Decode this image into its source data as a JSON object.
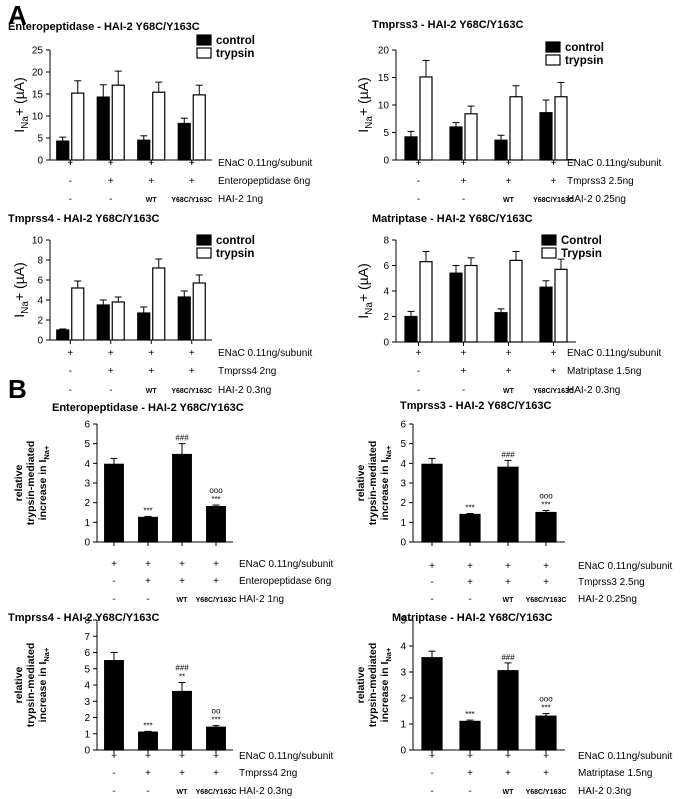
{
  "section_labels": {
    "a": "A",
    "b": "B"
  },
  "chart_data": [
    {
      "id": "A1",
      "type": "bar",
      "title": "Enteropeptidase - HAI-2 Y68C/Y163C",
      "ylabel_main": "I",
      "ylabel_sub": "Na",
      "ylabel_rest": "+ (µA)",
      "ylim": [
        0,
        25
      ],
      "yticks": [
        0,
        5,
        10,
        15,
        20,
        25
      ],
      "legend": [
        "control",
        "trypsin"
      ],
      "legend_position": "top-right",
      "series": [
        {
          "name": "control",
          "values": [
            4.3,
            14.3,
            4.5,
            8.3
          ],
          "errors": [
            0.9,
            2.8,
            1.0,
            1.2
          ]
        },
        {
          "name": "trypsin",
          "values": [
            15.2,
            17.0,
            15.4,
            14.8
          ],
          "errors": [
            2.8,
            3.2,
            2.3,
            2.2
          ]
        }
      ],
      "conditions": [
        {
          "label": "ENaC 0.11ng/subunit",
          "values": [
            "+",
            "+",
            "+",
            "+"
          ]
        },
        {
          "label": "Enteropeptidase 6ng",
          "values": [
            "-",
            "+",
            "+",
            "+"
          ]
        },
        {
          "label": "HAI-2 1ng",
          "values": [
            "-",
            "-",
            "WT",
            "Y68C/Y163C"
          ]
        }
      ]
    },
    {
      "id": "A2",
      "type": "bar",
      "title": "Tmprss3 - HAI-2 Y68C/Y163C",
      "ylabel_main": "I",
      "ylabel_sub": "Na",
      "ylabel_rest": "+ (µA)",
      "ylim": [
        0,
        20
      ],
      "yticks": [
        0,
        5,
        10,
        15,
        20
      ],
      "legend": [
        "control",
        "trypsin"
      ],
      "legend_position": "top-right",
      "series": [
        {
          "name": "control",
          "values": [
            4.2,
            6.0,
            3.6,
            8.6
          ],
          "errors": [
            1.0,
            0.8,
            0.9,
            2.3
          ]
        },
        {
          "name": "trypsin",
          "values": [
            15.1,
            8.4,
            11.5,
            11.5
          ],
          "errors": [
            3.0,
            1.4,
            2.0,
            2.6
          ]
        }
      ],
      "conditions": [
        {
          "label": "ENaC 0.11ng/subunit",
          "values": [
            "+",
            "+",
            "+",
            "+"
          ]
        },
        {
          "label": "Tmprss3 2.5ng",
          "values": [
            "-",
            "+",
            "+",
            "+"
          ]
        },
        {
          "label": "HAI-2 0.25ng",
          "values": [
            "-",
            "-",
            "WT",
            "Y68C/Y163C"
          ]
        }
      ]
    },
    {
      "id": "A3",
      "type": "bar",
      "title": "Tmprss4 - HAI-2 Y68C/Y163C",
      "ylabel_main": "I",
      "ylabel_sub": "Na",
      "ylabel_rest": "+ (µA)",
      "ylim": [
        0,
        10
      ],
      "yticks": [
        0,
        2,
        4,
        6,
        8,
        10
      ],
      "legend": [
        "control",
        "trypsin"
      ],
      "legend_position": "top-right",
      "series": [
        {
          "name": "control",
          "values": [
            1.0,
            3.5,
            2.7,
            4.3
          ],
          "errors": [
            0.1,
            0.5,
            0.6,
            0.6
          ]
        },
        {
          "name": "trypsin",
          "values": [
            5.2,
            3.8,
            7.2,
            5.7
          ],
          "errors": [
            0.7,
            0.5,
            0.9,
            0.8
          ]
        }
      ],
      "conditions": [
        {
          "label": "ENaC 0.11ng/subunit",
          "values": [
            "+",
            "+",
            "+",
            "+"
          ]
        },
        {
          "label": "Tmprss4 2ng",
          "values": [
            "-",
            "+",
            "+",
            "+"
          ]
        },
        {
          "label": "HAI-2 0.3ng",
          "values": [
            "-",
            "-",
            "WT",
            "Y68C/Y163C"
          ]
        }
      ]
    },
    {
      "id": "A4",
      "type": "bar",
      "title": "Matriptase - HAI-2 Y68C/Y163C",
      "ylabel_main": "I",
      "ylabel_sub": "Na",
      "ylabel_rest": "+ (µA)",
      "ylim": [
        0,
        8
      ],
      "yticks": [
        0,
        2,
        4,
        6,
        8
      ],
      "legend": [
        "Control",
        "Trypsin"
      ],
      "legend_position": "top-right",
      "series": [
        {
          "name": "Control",
          "values": [
            2.0,
            5.4,
            2.3,
            4.3
          ],
          "errors": [
            0.4,
            0.6,
            0.3,
            0.5
          ]
        },
        {
          "name": "Trypsin",
          "values": [
            6.3,
            6.0,
            6.4,
            5.7
          ],
          "errors": [
            0.8,
            0.6,
            0.7,
            0.8
          ]
        }
      ],
      "conditions": [
        {
          "label": "ENaC 0.11ng/subunit",
          "values": [
            "+",
            "+",
            "+",
            "+"
          ]
        },
        {
          "label": "Matriptase 1.5ng",
          "values": [
            "-",
            "+",
            "+",
            "+"
          ]
        },
        {
          "label": "HAI-2 0.3ng",
          "values": [
            "-",
            "-",
            "WT",
            "Y68C/Y163C"
          ]
        }
      ]
    },
    {
      "id": "B1",
      "type": "bar",
      "title": "Enteropeptidase - HAI-2  Y68C/Y163C",
      "ylabel_lines": [
        "relative",
        "trypsin-mediated"
      ],
      "ylabel_last_main": "increase in I",
      "ylabel_last_sub": "Na+",
      "ylim": [
        0,
        6
      ],
      "yticks": [
        0,
        1,
        2,
        3,
        4,
        5,
        6
      ],
      "series": [
        {
          "values": [
            3.95,
            1.25,
            4.45,
            1.8
          ],
          "errors": [
            0.3,
            0.05,
            0.55,
            0.08
          ]
        }
      ],
      "annotations": [
        [],
        [
          "***"
        ],
        [
          "###"
        ],
        [
          "***",
          "ooo"
        ]
      ],
      "conditions": [
        {
          "label": "ENaC 0.11ng/subunit",
          "values": [
            "+",
            "+",
            "+",
            "+"
          ]
        },
        {
          "label": "Enteropeptidase 6ng",
          "values": [
            "-",
            "+",
            "+",
            "+"
          ]
        },
        {
          "label": "HAI-2 1ng",
          "values": [
            "-",
            "-",
            "WT",
            "Y68C/Y163C"
          ]
        }
      ]
    },
    {
      "id": "B2",
      "type": "bar",
      "title": "Tmprss3 - HAI-2 Y68C/Y163C",
      "ylabel_lines": [
        "relative",
        "trypsin-mediated"
      ],
      "ylabel_last_main": "increase in I",
      "ylabel_last_sub": "Na+",
      "ylim": [
        0,
        6
      ],
      "yticks": [
        0,
        1,
        2,
        3,
        4,
        5,
        6
      ],
      "series": [
        {
          "values": [
            3.95,
            1.4,
            3.8,
            1.5
          ],
          "errors": [
            0.3,
            0.05,
            0.35,
            0.1
          ]
        }
      ],
      "annotations": [
        [],
        [
          "***"
        ],
        [
          "###"
        ],
        [
          "***",
          "ooo"
        ]
      ],
      "conditions": [
        {
          "label": "ENaC 0.11ng/subunit",
          "values": [
            "+",
            "+",
            "+",
            "+"
          ]
        },
        {
          "label": "Tmprss3 2.5ng",
          "values": [
            "-",
            "+",
            "+",
            "+"
          ]
        },
        {
          "label": "HAI-2 0.25ng",
          "values": [
            "-",
            "-",
            "WT",
            "Y68C/Y163C"
          ]
        }
      ]
    },
    {
      "id": "B3",
      "type": "bar",
      "title": "Tmprss4 - HAI-2 Y68C/Y163C",
      "ylabel_lines": [
        "relative",
        "trypsin-mediated"
      ],
      "ylabel_last_main": "increase in I",
      "ylabel_last_sub": "Na+",
      "ylim": [
        0,
        8
      ],
      "yticks": [
        0,
        1,
        2,
        3,
        4,
        5,
        6,
        7,
        8
      ],
      "series": [
        {
          "values": [
            5.5,
            1.1,
            3.6,
            1.4
          ],
          "errors": [
            0.5,
            0.05,
            0.55,
            0.1
          ]
        }
      ],
      "annotations": [
        [],
        [
          "***"
        ],
        [
          "**",
          "###"
        ],
        [
          "***",
          "oo"
        ]
      ],
      "conditions": [
        {
          "label": "ENaC 0.11ng/subunit",
          "values": [
            "+",
            "+",
            "+",
            "+"
          ]
        },
        {
          "label": "Tmprss4 2ng",
          "values": [
            "-",
            "+",
            "+",
            "+"
          ]
        },
        {
          "label": "HAI-2 0.3ng",
          "values": [
            "-",
            "-",
            "WT",
            "Y68C/Y163C"
          ]
        }
      ]
    },
    {
      "id": "B4",
      "type": "bar",
      "title": "Matriptase - HAI-2  Y68C/Y163C",
      "ylabel_lines": [
        "relative",
        "trypsin-mediated"
      ],
      "ylabel_last_main": "increase in I",
      "ylabel_last_sub": "Na+",
      "ylim": [
        0,
        5
      ],
      "yticks": [
        0,
        1,
        2,
        3,
        4,
        5
      ],
      "series": [
        {
          "values": [
            3.55,
            1.1,
            3.05,
            1.3
          ],
          "errors": [
            0.25,
            0.05,
            0.3,
            0.1
          ]
        }
      ],
      "annotations": [
        [],
        [
          "***"
        ],
        [
          "###"
        ],
        [
          "***",
          "ooo"
        ]
      ],
      "conditions": [
        {
          "label": "ENaC 0.11ng/subunit",
          "values": [
            "+",
            "+",
            "+",
            "+"
          ]
        },
        {
          "label": "Matriptase 1.5ng",
          "values": [
            "-",
            "+",
            "+",
            "+"
          ]
        },
        {
          "label": "HAI-2 0.3ng",
          "values": [
            "-",
            "-",
            "WT",
            "Y68C/Y163C"
          ]
        }
      ]
    }
  ]
}
